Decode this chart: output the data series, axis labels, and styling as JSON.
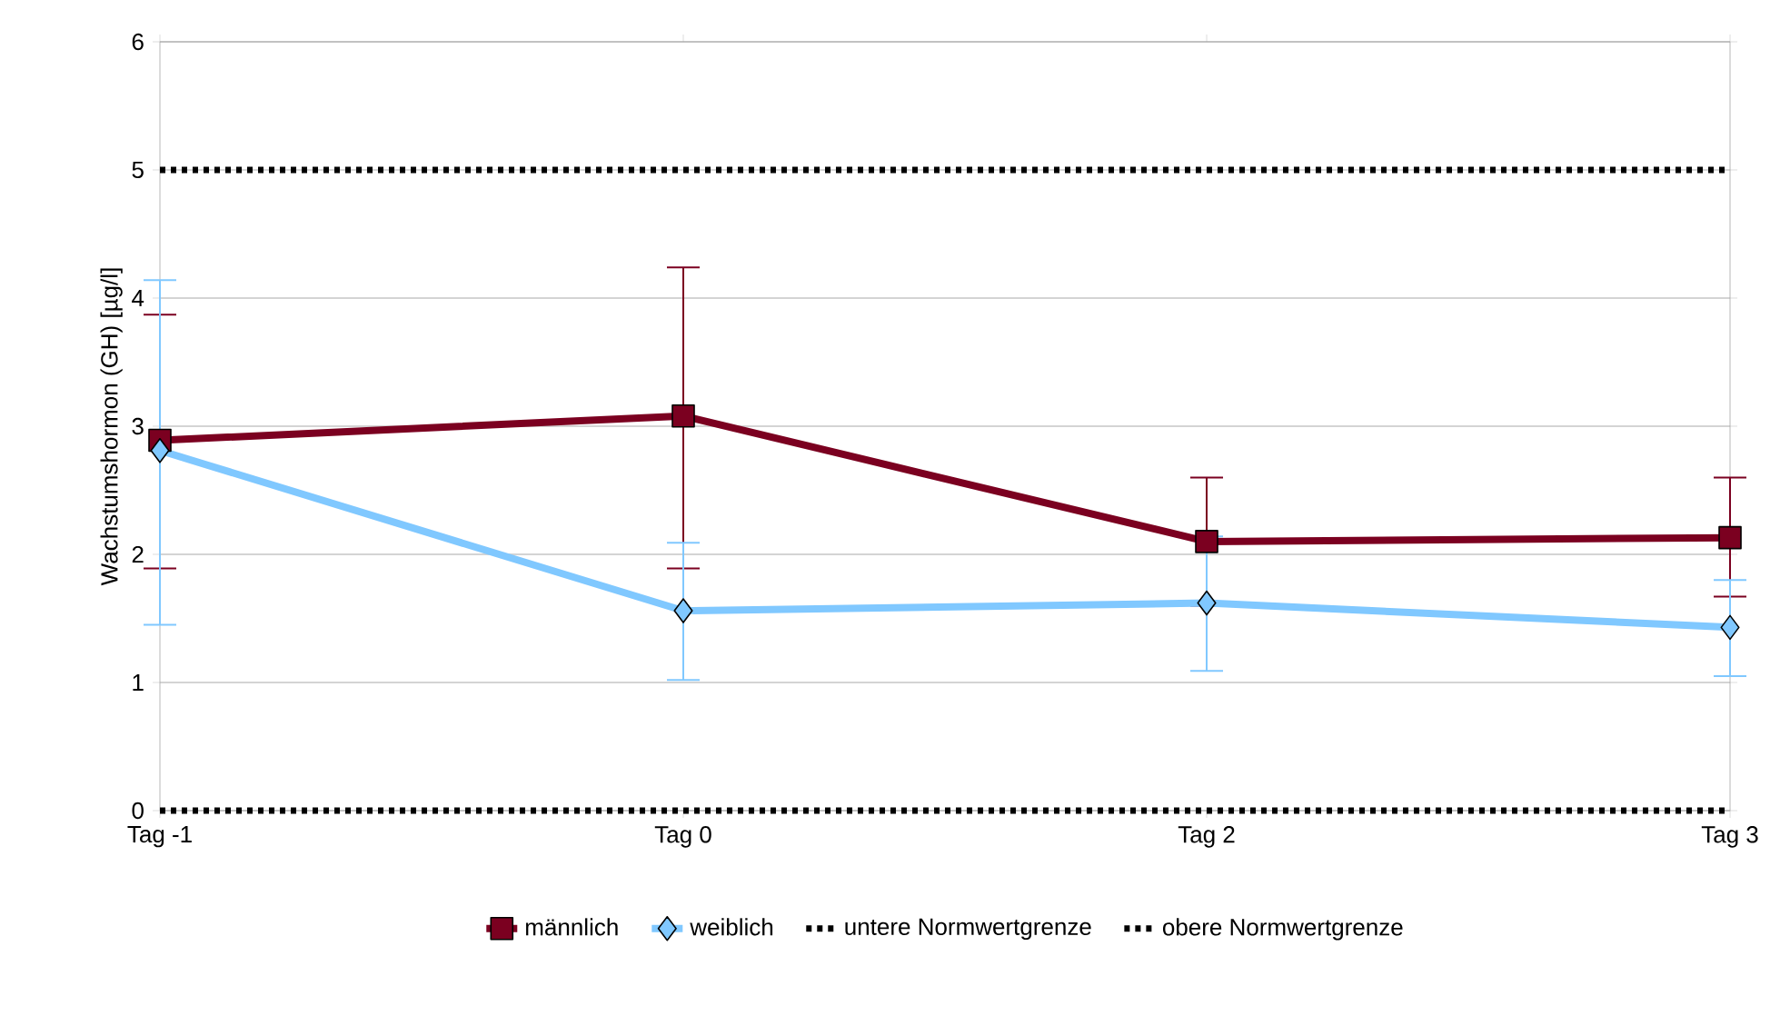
{
  "chart_data": {
    "type": "line",
    "ylabel": "Wachstumshormon (GH) [µg/l]",
    "categories": [
      "Tag -1",
      "Tag 0",
      "Tag 2",
      "Tag 3"
    ],
    "ylim": [
      0,
      6
    ],
    "yticks": [
      0,
      1,
      2,
      3,
      4,
      5,
      6
    ],
    "grid": "y",
    "legend": "bottom",
    "series": [
      {
        "name": "männlich",
        "color": "#7b0020",
        "marker": "square",
        "line_style": "solid",
        "values": [
          2.89,
          3.08,
          2.1,
          2.13
        ],
        "errors": [
          [
            1.89,
            3.87
          ],
          [
            1.89,
            4.24
          ],
          [
            1.6,
            2.6
          ],
          [
            1.67,
            2.6
          ]
        ]
      },
      {
        "name": "weiblich",
        "color": "#80c8ff",
        "marker": "diamond",
        "line_style": "solid",
        "values": [
          2.81,
          1.56,
          1.62,
          1.43
        ],
        "errors": [
          [
            1.45,
            4.14
          ],
          [
            1.02,
            2.09
          ],
          [
            1.09,
            2.14
          ],
          [
            1.05,
            1.8
          ]
        ]
      },
      {
        "name": "untere Normwertgrenze",
        "color": "#000000",
        "marker": "none",
        "line_style": "dotted",
        "values": [
          0,
          0,
          0,
          0
        ]
      },
      {
        "name": "obere Normwertgrenze",
        "color": "#000000",
        "marker": "none",
        "line_style": "dotted",
        "values": [
          5,
          5,
          5,
          5
        ]
      }
    ]
  }
}
